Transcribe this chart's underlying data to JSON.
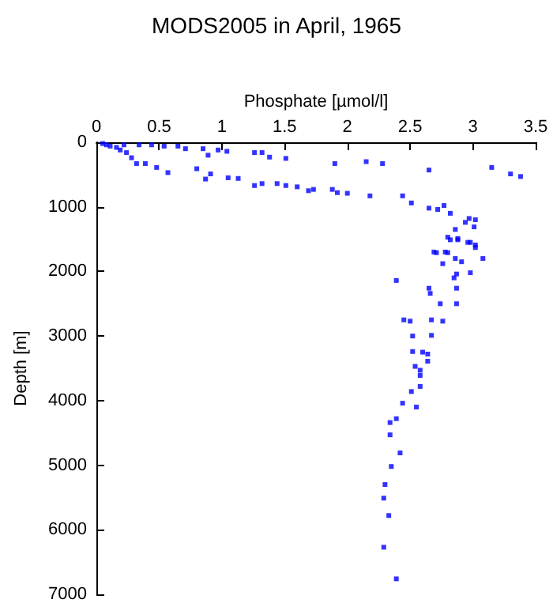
{
  "chart_data": {
    "type": "scatter",
    "title": "MODS2005 in April, 1965",
    "xlabel": "Phosphate [µmol/l]",
    "ylabel": "Depth [m]",
    "xlim": [
      0,
      3.5
    ],
    "xticks": [
      0,
      0.5,
      1,
      1.5,
      2,
      2.5,
      3,
      3.5
    ],
    "ylim": [
      7000,
      0
    ],
    "yticks": [
      0,
      1000,
      2000,
      3000,
      4000,
      5000,
      6000,
      7000
    ],
    "marker": "square",
    "series": [
      {
        "color": "#0000ff",
        "x": [
          0.05,
          0.08,
          0.11,
          0.16,
          0.19,
          0.22,
          0.24,
          0.28,
          0.32,
          0.34,
          0.39,
          0.44,
          0.48,
          0.54,
          0.57,
          0.65,
          0.71,
          0.8,
          0.85,
          0.89,
          0.87,
          0.91,
          0.97,
          1.04,
          1.05,
          1.13,
          1.26,
          1.26,
          1.32,
          1.32,
          1.38,
          1.44,
          1.51,
          1.51,
          1.6,
          1.69,
          1.73,
          1.88,
          1.9,
          1.92,
          2.0,
          2.15,
          2.18,
          2.28,
          2.44,
          2.51,
          2.65,
          2.65,
          2.72,
          2.77,
          2.82,
          2.86,
          2.94,
          2.97,
          3.02,
          3.01,
          2.8,
          2.88,
          2.96,
          3.02,
          2.69,
          2.78,
          3.15,
          3.3,
          3.38,
          2.82,
          2.88,
          2.98,
          3.02,
          2.71,
          2.8,
          2.86,
          2.91,
          3.08,
          2.76,
          2.87,
          2.85,
          2.98,
          2.39,
          2.65,
          2.66,
          2.87,
          2.74,
          2.87,
          2.45,
          2.5,
          2.67,
          2.76,
          2.52,
          2.67,
          2.52,
          2.6,
          2.64,
          2.64,
          2.54,
          2.58,
          2.58,
          2.58,
          2.51,
          2.44,
          2.55,
          2.39,
          2.34,
          2.34,
          2.42,
          2.35,
          2.3,
          2.29,
          2.33,
          2.29,
          2.39
        ],
        "values": [
          20,
          40,
          60,
          80,
          120,
          40,
          160,
          240,
          330,
          40,
          330,
          40,
          390,
          60,
          470,
          60,
          100,
          410,
          100,
          200,
          570,
          490,
          120,
          140,
          550,
          560,
          160,
          670,
          160,
          640,
          230,
          640,
          250,
          670,
          690,
          750,
          730,
          730,
          330,
          780,
          790,
          300,
          830,
          330,
          830,
          940,
          430,
          1020,
          1040,
          980,
          1100,
          1350,
          1240,
          1180,
          1200,
          1310,
          1470,
          1490,
          1550,
          1630,
          1700,
          1700,
          390,
          490,
          530,
          1510,
          1510,
          1550,
          1590,
          1710,
          1710,
          1800,
          1850,
          1800,
          1880,
          2040,
          2100,
          2020,
          2140,
          2260,
          2340,
          2260,
          2500,
          2500,
          2750,
          2770,
          2750,
          2770,
          3000,
          2990,
          3240,
          3250,
          3280,
          3390,
          3470,
          3530,
          3610,
          3780,
          3860,
          4040,
          4100,
          4280,
          4340,
          4530,
          4810,
          5020,
          5300,
          5510,
          5780,
          6270,
          6760
        ]
      }
    ]
  }
}
